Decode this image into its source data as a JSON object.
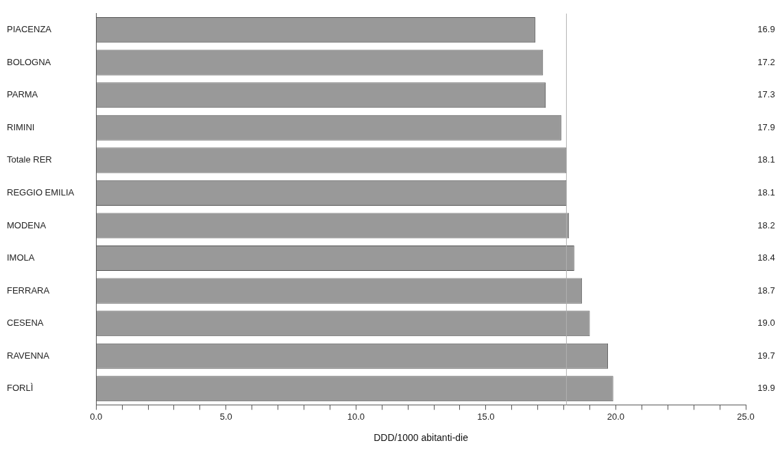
{
  "chart_data": {
    "type": "bar",
    "orientation": "horizontal",
    "xlabel": "DDD/1000 abitanti-die",
    "categories": [
      "PIACENZA",
      "BOLOGNA",
      "PARMA",
      "RIMINI",
      "Totale RER",
      "REGGIO EMILIA",
      "MODENA",
      "IMOLA",
      "FERRARA",
      "CESENA",
      "RAVENNA",
      "FORLÌ"
    ],
    "values": [
      16.9,
      17.2,
      17.3,
      17.9,
      18.1,
      18.1,
      18.2,
      18.4,
      18.7,
      19.0,
      19.7,
      19.9
    ],
    "value_labels": [
      "16.9",
      "17.2",
      "17.3",
      "17.9",
      "18.1",
      "18.1",
      "18.2",
      "18.4",
      "18.7",
      "19.0",
      "19.7",
      "19.9"
    ],
    "color": "#999999",
    "grid": false,
    "legend": false,
    "xlim": [
      0,
      25
    ],
    "xticks": [
      {
        "value": 0,
        "label": "0.0"
      },
      {
        "value": 1,
        "label": null
      },
      {
        "value": 2,
        "label": null
      },
      {
        "value": 3,
        "label": null
      },
      {
        "value": 4,
        "label": null
      },
      {
        "value": 5,
        "label": "5.0"
      },
      {
        "value": 6,
        "label": null
      },
      {
        "value": 7,
        "label": null
      },
      {
        "value": 8,
        "label": null
      },
      {
        "value": 9,
        "label": null
      },
      {
        "value": 10,
        "label": "10.0"
      },
      {
        "value": 11,
        "label": null
      },
      {
        "value": 12,
        "label": null
      },
      {
        "value": 13,
        "label": null
      },
      {
        "value": 14,
        "label": null
      },
      {
        "value": 15,
        "label": "15.0"
      },
      {
        "value": 16,
        "label": null
      },
      {
        "value": 17,
        "label": null
      },
      {
        "value": 18,
        "label": null
      },
      {
        "value": 19,
        "label": null
      },
      {
        "value": 20,
        "label": "20.0"
      },
      {
        "value": 21,
        "label": null
      },
      {
        "value": 22,
        "label": null
      },
      {
        "value": 23,
        "label": null
      },
      {
        "value": 24,
        "label": null
      },
      {
        "value": 25,
        "label": "25.0"
      }
    ],
    "ref_lines": [
      {
        "axis": "x",
        "value": 18.1,
        "color": "#b0b0b0"
      }
    ]
  }
}
